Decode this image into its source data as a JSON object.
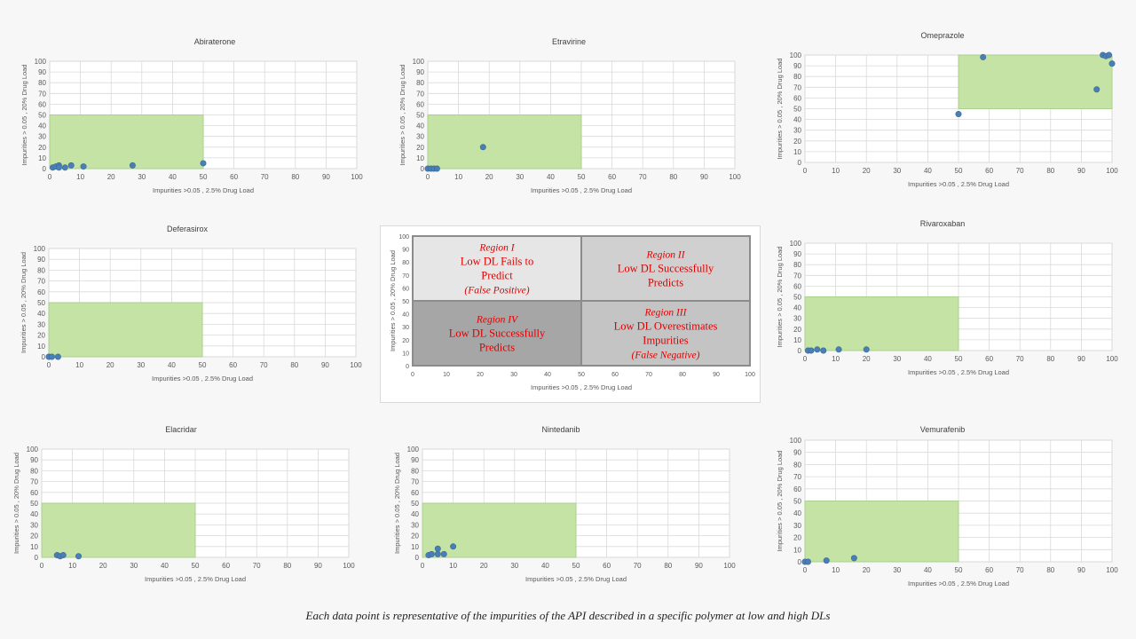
{
  "caption": "Each data point is representative of the impurities of the API described in a specific polymer at low and high DLs",
  "colors": {
    "region_fill": "#c5e3a5",
    "region_stroke": "#a9d18e",
    "point": "#4a7fb5",
    "grid": "#d9d9d9"
  },
  "chart_data": [
    {
      "type": "scatter",
      "title": "Abiraterone",
      "xlabel": "Impurities  >0.05 , 2.5% Drug Load",
      "ylabel": "Impurities  > 0.05 , 20% Drug Load",
      "xlim": [
        0,
        100
      ],
      "ylim": [
        0,
        100
      ],
      "x_ticks": [
        "0",
        "10",
        "20",
        "30",
        "40",
        "50",
        "60",
        "70",
        "80",
        "90",
        "100"
      ],
      "y_ticks": [
        "0",
        "10",
        "20",
        "30",
        "40",
        "50",
        "60",
        "70",
        "80",
        "90",
        "100"
      ],
      "region": {
        "x": [
          0,
          50
        ],
        "y": [
          0,
          50
        ]
      },
      "points": [
        [
          1,
          1
        ],
        [
          2,
          2
        ],
        [
          3,
          3
        ],
        [
          3,
          1
        ],
        [
          5,
          1
        ],
        [
          7,
          3
        ],
        [
          11,
          2
        ],
        [
          27,
          3
        ],
        [
          50,
          5
        ]
      ]
    },
    {
      "type": "scatter",
      "title": "Etravirine",
      "xlabel": "Impurities  >0.05 , 2.5% Drug Load",
      "ylabel": "Impurities  > 0.05 , 20% Drug Load",
      "xlim": [
        0,
        100
      ],
      "ylim": [
        0,
        100
      ],
      "x_ticks": [
        "0",
        "10",
        "20",
        "30",
        "40",
        "50",
        "60",
        "70",
        "80",
        "90",
        "100"
      ],
      "y_ticks": [
        "0",
        "10",
        "20",
        "30",
        "40",
        "50",
        "60",
        "70",
        "80",
        "90",
        "100"
      ],
      "region": {
        "x": [
          0,
          50
        ],
        "y": [
          0,
          50
        ]
      },
      "points": [
        [
          0,
          0
        ],
        [
          1,
          0
        ],
        [
          2,
          0
        ],
        [
          3,
          0
        ],
        [
          18,
          20
        ]
      ]
    },
    {
      "type": "scatter",
      "title": "Omeprazole",
      "xlabel": "Impurities  >0.05 , 2.5% Drug Load",
      "ylabel": "Impurities  > 0.05 , 20% Drug Load",
      "xlim": [
        0,
        100
      ],
      "ylim": [
        0,
        100
      ],
      "x_ticks": [
        "0",
        "10",
        "20",
        "30",
        "40",
        "50",
        "60",
        "70",
        "80",
        "90",
        "100"
      ],
      "y_ticks": [
        "0",
        "10",
        "20",
        "30",
        "40",
        "50",
        "60",
        "70",
        "80",
        "90",
        "100"
      ],
      "region": {
        "x": [
          50,
          100
        ],
        "y": [
          50,
          100
        ]
      },
      "points": [
        [
          50,
          45
        ],
        [
          58,
          98
        ],
        [
          95,
          68
        ],
        [
          97,
          100
        ],
        [
          98,
          99
        ],
        [
          99,
          100
        ],
        [
          100,
          92
        ]
      ]
    },
    {
      "type": "scatter",
      "title": "Deferasirox",
      "xlabel": "Impurities  >0.05 , 2.5% Drug Load",
      "ylabel": "Impurities  > 0.05 , 20% Drug Load",
      "xlim": [
        0,
        100
      ],
      "ylim": [
        0,
        100
      ],
      "x_ticks": [
        "0",
        "10",
        "20",
        "30",
        "40",
        "50",
        "60",
        "70",
        "80",
        "90",
        "100"
      ],
      "y_ticks": [
        "0",
        "10",
        "20",
        "30",
        "40",
        "50",
        "60",
        "70",
        "80",
        "90",
        "100"
      ],
      "region": {
        "x": [
          0,
          50
        ],
        "y": [
          0,
          50
        ]
      },
      "points": [
        [
          0,
          0
        ],
        [
          1,
          0
        ],
        [
          3,
          0
        ]
      ]
    },
    {
      "type": "scatter",
      "title": "Rivaroxaban",
      "xlabel": "Impurities  >0.05 , 2.5% Drug Load",
      "ylabel": "Impurities  > 0.05 , 20% Drug Load",
      "xlim": [
        0,
        100
      ],
      "ylim": [
        0,
        100
      ],
      "x_ticks": [
        "0",
        "10",
        "20",
        "30",
        "40",
        "50",
        "60",
        "70",
        "80",
        "90",
        "100"
      ],
      "y_ticks": [
        "0",
        "10",
        "20",
        "30",
        "40",
        "50",
        "60",
        "70",
        "80",
        "90",
        "100"
      ],
      "region": {
        "x": [
          0,
          50
        ],
        "y": [
          0,
          50
        ]
      },
      "points": [
        [
          1,
          0
        ],
        [
          2,
          0
        ],
        [
          4,
          1
        ],
        [
          6,
          0
        ],
        [
          11,
          1
        ],
        [
          20,
          1
        ]
      ]
    },
    {
      "type": "scatter",
      "title": "Elacridar",
      "xlabel": "Impurities  >0.05 , 2.5% Drug Load",
      "ylabel": "Impurities  > 0.05 , 20% Drug Load",
      "xlim": [
        0,
        100
      ],
      "ylim": [
        0,
        100
      ],
      "x_ticks": [
        "0",
        "10",
        "20",
        "30",
        "40",
        "50",
        "60",
        "70",
        "80",
        "90",
        "100"
      ],
      "y_ticks": [
        "0",
        "10",
        "20",
        "30",
        "40",
        "50",
        "60",
        "70",
        "80",
        "90",
        "100"
      ],
      "region": {
        "x": [
          0,
          50
        ],
        "y": [
          0,
          50
        ]
      },
      "points": [
        [
          5,
          2
        ],
        [
          6,
          1
        ],
        [
          7,
          2
        ],
        [
          12,
          1
        ]
      ]
    },
    {
      "type": "scatter",
      "title": "Nintedanib",
      "xlabel": "Impurities  >0.05 , 2.5% Drug Load",
      "ylabel": "Impurities  > 0.05 , 20% Drug Load",
      "xlim": [
        0,
        100
      ],
      "ylim": [
        0,
        100
      ],
      "x_ticks": [
        "0",
        "10",
        "20",
        "30",
        "40",
        "50",
        "60",
        "70",
        "80",
        "90",
        "100"
      ],
      "y_ticks": [
        "0",
        "10",
        "20",
        "30",
        "40",
        "50",
        "60",
        "70",
        "80",
        "90",
        "100"
      ],
      "region": {
        "x": [
          0,
          50
        ],
        "y": [
          0,
          50
        ]
      },
      "points": [
        [
          2,
          2
        ],
        [
          3,
          3
        ],
        [
          5,
          3
        ],
        [
          5,
          8
        ],
        [
          7,
          3
        ],
        [
          10,
          10
        ]
      ]
    },
    {
      "type": "scatter",
      "title": "Vemurafenib",
      "xlabel": "Impurities  >0.05 , 2.5% Drug Load",
      "ylabel": "Impurities  > 0.05 , 20% Drug Load",
      "xlim": [
        0,
        100
      ],
      "ylim": [
        0,
        100
      ],
      "x_ticks": [
        "0",
        "10",
        "20",
        "30",
        "40",
        "50",
        "60",
        "70",
        "80",
        "90",
        "100"
      ],
      "y_ticks": [
        "0",
        "10",
        "20",
        "30",
        "40",
        "50",
        "60",
        "70",
        "80",
        "90",
        "100"
      ],
      "region": {
        "x": [
          0,
          50
        ],
        "y": [
          0,
          50
        ]
      },
      "points": [
        [
          0,
          0
        ],
        [
          1,
          0
        ],
        [
          7,
          1
        ],
        [
          16,
          3
        ]
      ]
    },
    {
      "type": "scatter",
      "title": "",
      "xlabel": "Impurities  >0.05 , 2.5% Drug Load",
      "ylabel": "Impurities  > 0.05 , 20% Drug Load",
      "xlim": [
        0,
        100
      ],
      "ylim": [
        0,
        100
      ],
      "x_ticks": [
        "0",
        "10",
        "20",
        "30",
        "40",
        "50",
        "60",
        "70",
        "80",
        "90",
        "100"
      ],
      "y_ticks": [
        "0",
        "10",
        "20",
        "30",
        "40",
        "50",
        "60",
        "70",
        "80",
        "90",
        "100"
      ],
      "quadrants": [
        {
          "id": "I",
          "x": [
            0,
            50
          ],
          "y": [
            50,
            100
          ],
          "fill": "#e6e6e6",
          "lines": [
            "Region I",
            "Low DL Fails to",
            "Predict",
            "(False Positive)"
          ]
        },
        {
          "id": "II",
          "x": [
            50,
            100
          ],
          "y": [
            50,
            100
          ],
          "fill": "#d0d0d0",
          "lines": [
            "Region II",
            "Low DL Successfully",
            "Predicts"
          ]
        },
        {
          "id": "IV",
          "x": [
            0,
            50
          ],
          "y": [
            0,
            50
          ],
          "fill": "#a6a6a6",
          "lines": [
            "Region IV",
            "Low DL Successfully",
            "Predicts"
          ]
        },
        {
          "id": "III",
          "x": [
            50,
            100
          ],
          "y": [
            0,
            50
          ],
          "fill": "#c4c4c4",
          "lines": [
            "Region III",
            "Low DL Overestimates",
            "Impurities",
            "(False Negative)"
          ]
        }
      ]
    }
  ]
}
